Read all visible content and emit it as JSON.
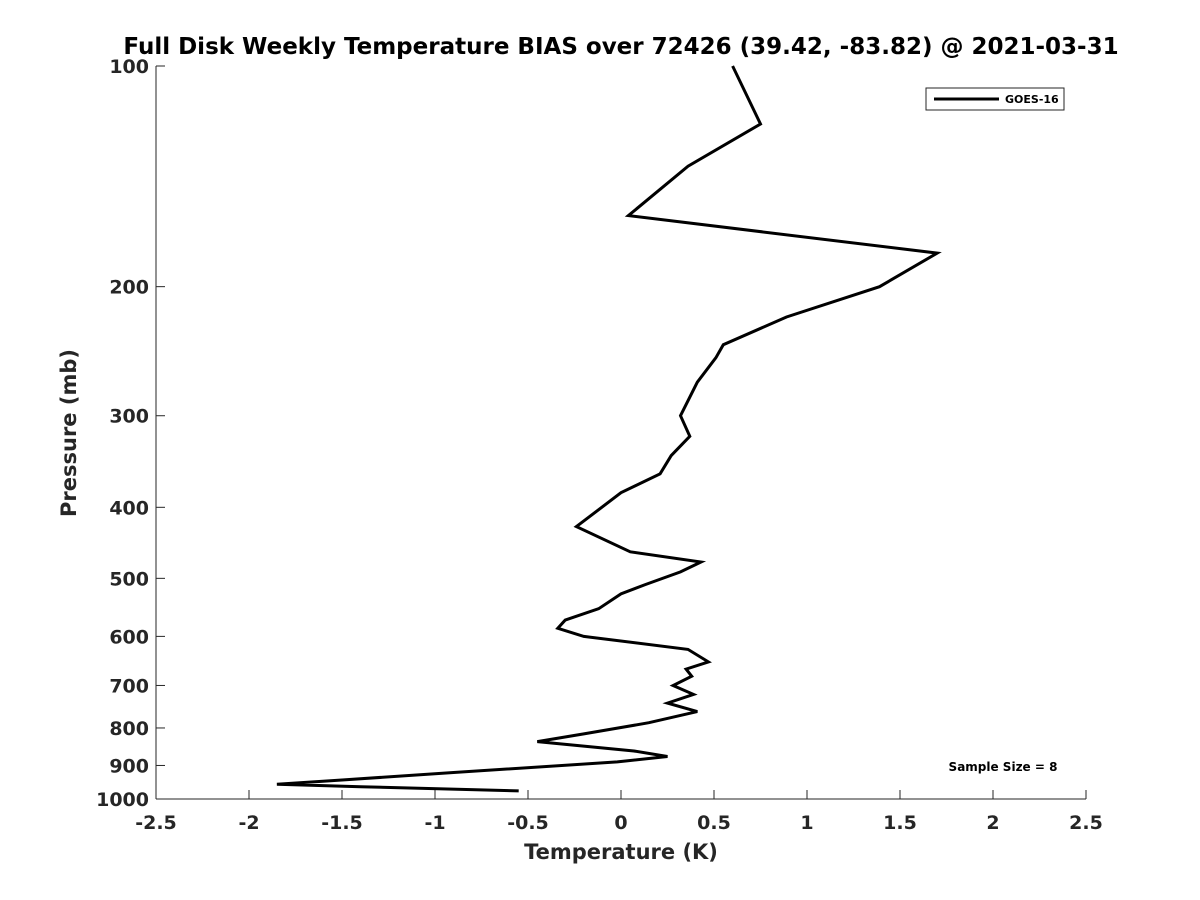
{
  "chart_data": {
    "type": "line",
    "title": "Full Disk Weekly Temperature BIAS over 72426 (39.42, -83.82) @ 2021-03-31",
    "xlabel": "Temperature (K)",
    "ylabel": "Pressure (mb)",
    "xlim": [
      -2.5,
      2.5
    ],
    "ylim": [
      100,
      1000
    ],
    "yscale": "log",
    "y_reversed": true,
    "x_ticks": [
      "-2.5",
      "-2",
      "-1.5",
      "-1",
      "-0.5",
      "0",
      "0.5",
      "1",
      "1.5",
      "2",
      "2.5"
    ],
    "y_ticks": [
      "100",
      "200",
      "300",
      "400",
      "500",
      "600",
      "700",
      "800",
      "900",
      "1000"
    ],
    "grid": false,
    "legend_position": "top-right",
    "series": [
      {
        "name": "GOES-16",
        "color": "#000000",
        "points": [
          [
            0.6,
            100
          ],
          [
            0.75,
            120
          ],
          [
            0.36,
            137
          ],
          [
            0.04,
            160
          ],
          [
            1.7,
            180
          ],
          [
            1.39,
            200
          ],
          [
            0.89,
            220
          ],
          [
            0.55,
            240
          ],
          [
            0.51,
            250
          ],
          [
            0.41,
            270
          ],
          [
            0.32,
            300
          ],
          [
            0.37,
            320
          ],
          [
            0.27,
            340
          ],
          [
            0.21,
            360
          ],
          [
            0.0,
            382
          ],
          [
            -0.24,
            425
          ],
          [
            0.05,
            460
          ],
          [
            0.43,
            475
          ],
          [
            0.32,
            490
          ],
          [
            0.13,
            510
          ],
          [
            0.0,
            525
          ],
          [
            -0.12,
            550
          ],
          [
            -0.3,
            570
          ],
          [
            -0.34,
            585
          ],
          [
            -0.2,
            600
          ],
          [
            0.36,
            625
          ],
          [
            0.47,
            650
          ],
          [
            0.35,
            665
          ],
          [
            0.38,
            680
          ],
          [
            0.28,
            700
          ],
          [
            0.39,
            720
          ],
          [
            0.25,
            740
          ],
          [
            0.41,
            760
          ],
          [
            0.15,
            787
          ],
          [
            -0.2,
            815
          ],
          [
            -0.45,
            835
          ],
          [
            0.07,
            860
          ],
          [
            0.25,
            875
          ],
          [
            -0.02,
            890
          ],
          [
            -0.9,
            920
          ],
          [
            -1.5,
            942
          ],
          [
            -1.85,
            955
          ],
          [
            -1.4,
            962
          ],
          [
            -0.55,
            975
          ]
        ]
      }
    ],
    "annotations": [
      "Sample Size = 8"
    ]
  }
}
